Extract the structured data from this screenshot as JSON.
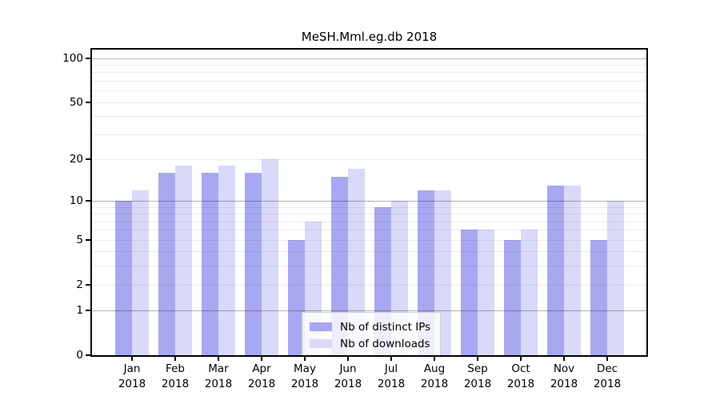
{
  "title": "MeSH.Mml.eg.db 2018",
  "chart_data": {
    "type": "bar",
    "title": "MeSH.Mml.eg.db 2018",
    "categories": [
      "Jan",
      "Feb",
      "Mar",
      "Apr",
      "May",
      "Jun",
      "Jul",
      "Aug",
      "Sep",
      "Oct",
      "Nov",
      "Dec"
    ],
    "category_year": "2018",
    "series": [
      {
        "name": "Nb of distinct IPs",
        "color": "#a8a8f2",
        "values": [
          10,
          16,
          16,
          16,
          5,
          15,
          9,
          12,
          6,
          5,
          13,
          5
        ]
      },
      {
        "name": "Nb of downloads",
        "color": "#d9d9f9",
        "values": [
          12,
          18,
          18,
          20,
          7,
          17,
          10,
          12,
          6,
          6,
          13,
          10
        ]
      }
    ],
    "yscale": "log1p",
    "ylim": [
      0,
      113
    ],
    "yticks": [
      0,
      1,
      2,
      5,
      10,
      20,
      50,
      100
    ],
    "grid": "horizontal",
    "grid_major": [
      1,
      10,
      100
    ],
    "grid_minor": [
      2,
      3,
      4,
      5,
      6,
      7,
      8,
      9,
      20,
      30,
      40,
      50,
      60,
      70,
      80,
      90
    ],
    "legend": {
      "position": "bottom-center-inside",
      "items": [
        {
          "label": "Nb of distinct IPs",
          "color": "#a8a8f2"
        },
        {
          "label": "Nb of downloads",
          "color": "#d9d9f9"
        }
      ]
    }
  },
  "colors": {
    "background": "#ffffff",
    "axis": "#000000",
    "grid_major": "rgba(0,0,0,0.30)",
    "grid_minor": "rgba(0,0,0,0.08)",
    "legend_border": "#cccccc",
    "legend_background": "rgba(255,255,255,0.8)"
  }
}
